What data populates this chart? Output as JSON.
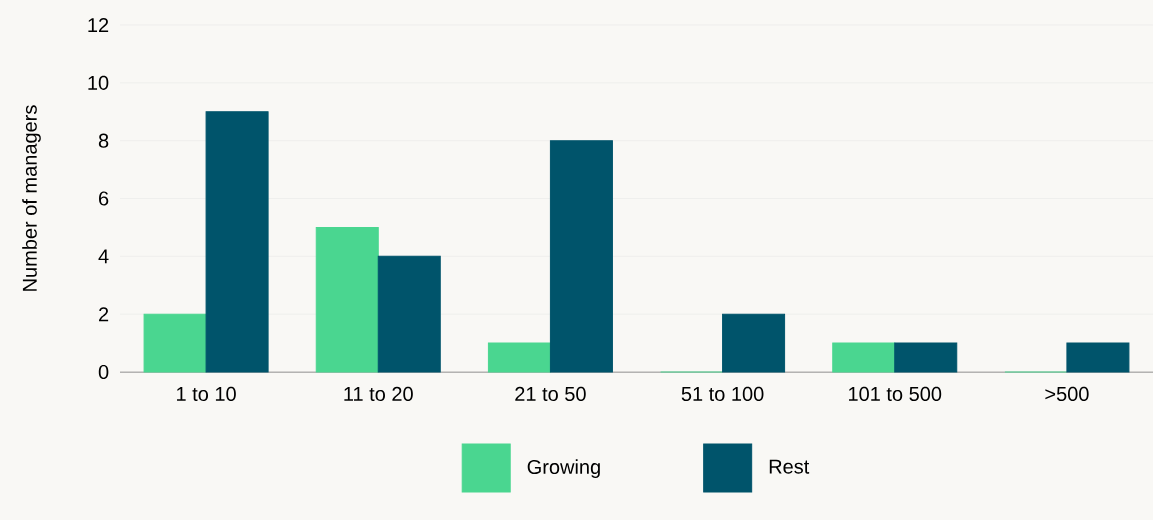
{
  "chart_data": {
    "type": "bar",
    "ylabel": "Number of managers",
    "categories": [
      "1 to 10",
      "11 to 20",
      "21 to 50",
      "51 to 100",
      "101 to 500",
      ">500"
    ],
    "series": [
      {
        "name": "Growing",
        "color": "#4ad690",
        "values": [
          2,
          5,
          1,
          0,
          1,
          0
        ]
      },
      {
        "name": "Rest",
        "color": "#00546b",
        "values": [
          9,
          4,
          8,
          2,
          1,
          1
        ]
      }
    ],
    "ylim": [
      0,
      12
    ],
    "yticks": [
      0,
      2,
      4,
      6,
      8,
      10,
      12
    ],
    "grid": "y",
    "legend": "bottom"
  }
}
